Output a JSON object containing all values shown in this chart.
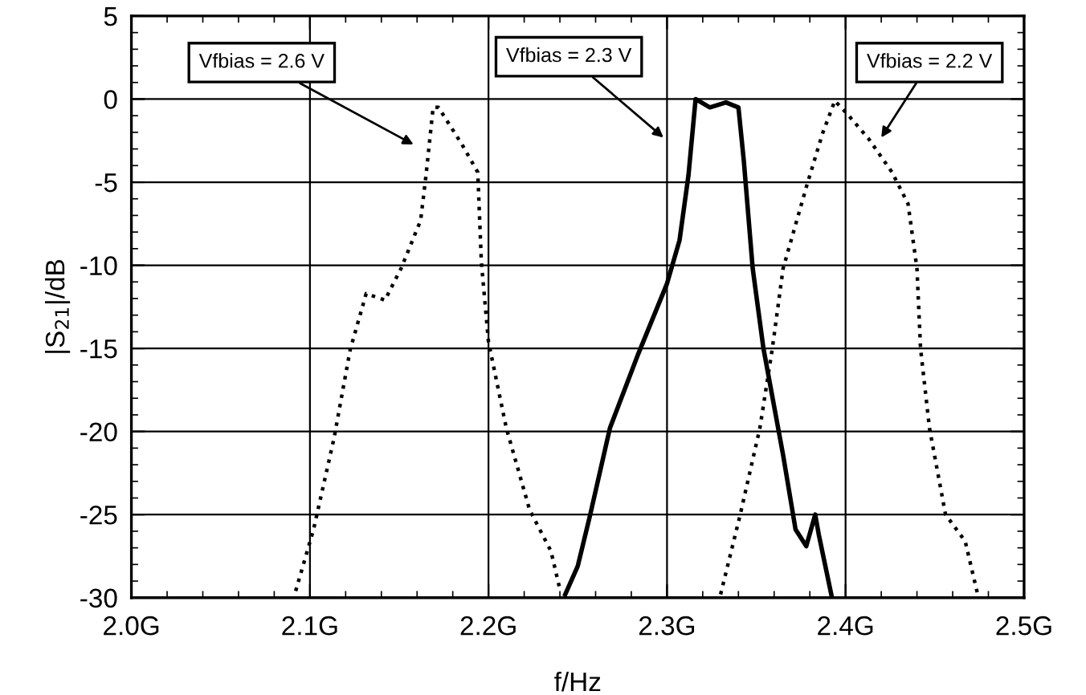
{
  "chart_data": {
    "type": "line",
    "xlabel": "f/Hz",
    "ylabel": "|S$_{21}$|/dB",
    "xlim": [
      2.0,
      2.5
    ],
    "xticks": [
      {
        "value": 2.0,
        "label": "2.0G"
      },
      {
        "value": 2.1,
        "label": "2.1G"
      },
      {
        "value": 2.2,
        "label": "2.2G"
      },
      {
        "value": 2.3,
        "label": "2.3G"
      },
      {
        "value": 2.4,
        "label": "2.4G"
      },
      {
        "value": 2.5,
        "label": "2.5G"
      }
    ],
    "ylim": [
      -30,
      5
    ],
    "yticks": [
      -30,
      -25,
      -20,
      -15,
      -10,
      -5,
      0,
      5
    ],
    "grid": true,
    "legend": false,
    "series": [
      {
        "color": "#000000",
        "line_style": "dotted",
        "x": [
          2.092,
          2.102,
          2.1135,
          2.1225,
          2.1315,
          2.142,
          2.151,
          2.162,
          2.165,
          2.169,
          2.172,
          2.185,
          2.194,
          2.196,
          2.2,
          2.21,
          2.223,
          2.235,
          2.24
        ],
        "values": [
          -29.6,
          -25.9,
          -20.4,
          -15.1,
          -11.7,
          -12.1,
          -10.2,
          -7.3,
          -4.6,
          -0.5,
          -0.5,
          -2.7,
          -4.4,
          -9.8,
          -14.6,
          -19.8,
          -24.7,
          -27.2,
          -29.5
        ]
      },
      {
        "color": "#000000",
        "line_style": "solid",
        "x": [
          2.243,
          2.25,
          2.257,
          2.268,
          2.284,
          2.3,
          2.307,
          2.312,
          2.316,
          2.324,
          2.333,
          2.34,
          2.343,
          2.348,
          2.354,
          2.365,
          2.372,
          2.378,
          2.383,
          2.385,
          2.392
        ],
        "values": [
          -29.8,
          -28.1,
          -25.0,
          -19.8,
          -15.3,
          -11.1,
          -8.5,
          -4.6,
          0.0,
          -0.5,
          -0.2,
          -0.5,
          -3.7,
          -10.2,
          -15.0,
          -21.4,
          -25.9,
          -26.9,
          -25.0,
          -26.2,
          -29.8
        ]
      },
      {
        "color": "#000000",
        "line_style": "dotted",
        "x": [
          2.33,
          2.341,
          2.352,
          2.359,
          2.365,
          2.378,
          2.387,
          2.394,
          2.401,
          2.413,
          2.426,
          2.435,
          2.44,
          2.442,
          2.447,
          2.456,
          2.467,
          2.474
        ],
        "values": [
          -29.8,
          -25.0,
          -19.8,
          -15.0,
          -10.2,
          -5.3,
          -2.1,
          -0.1,
          -0.9,
          -2.4,
          -4.4,
          -6.3,
          -10.2,
          -15.0,
          -19.8,
          -25.0,
          -26.6,
          -29.8
        ]
      }
    ],
    "annotations": [
      "Vfbias = 2.6 V",
      "Vfbias = 2.3 V",
      "Vfbias = 2.2 V"
    ]
  }
}
